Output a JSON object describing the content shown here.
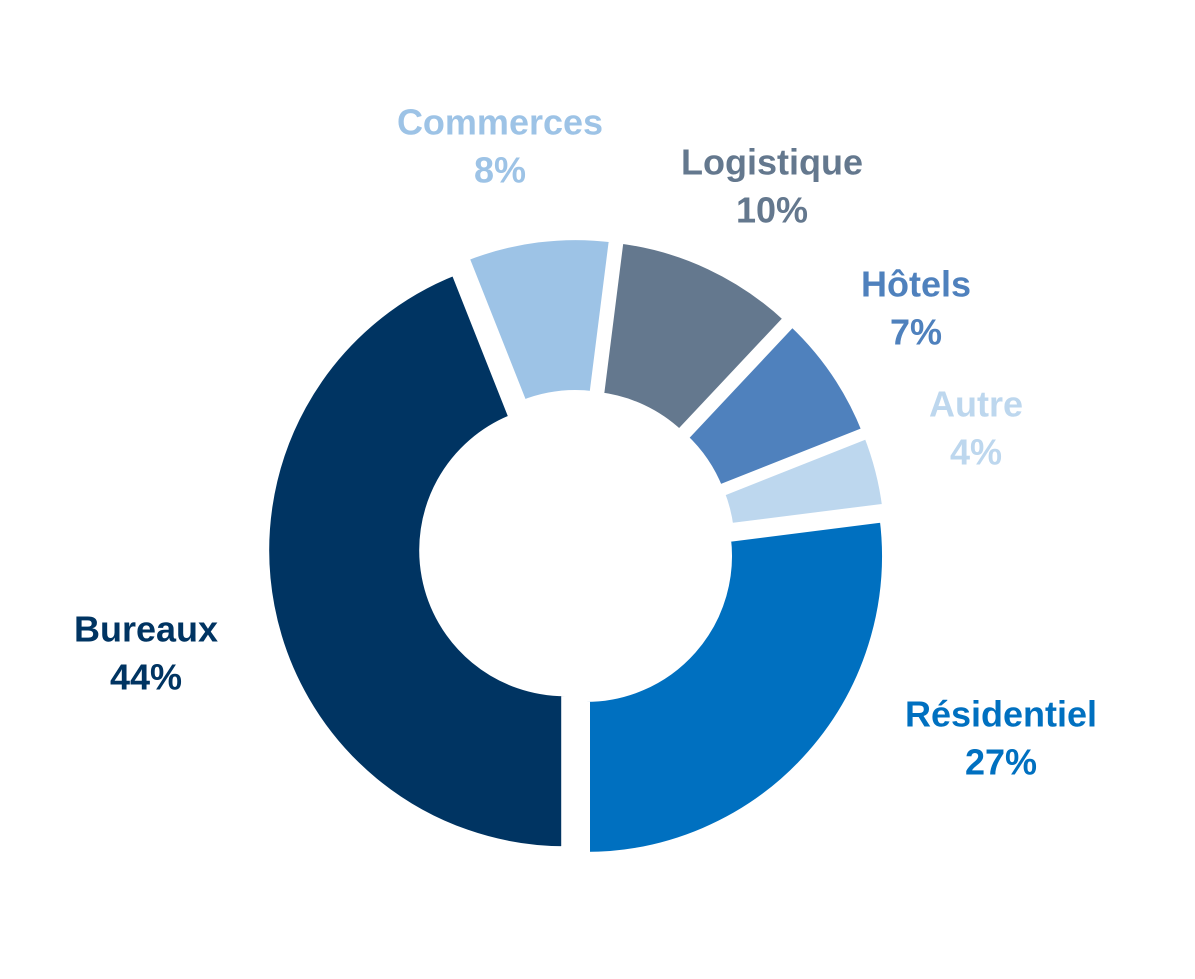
{
  "chart_data": {
    "type": "donut",
    "categories": [
      "Bureaux",
      "Commerces",
      "Logistique",
      "Hôtels",
      "Autre",
      "Résidentiel"
    ],
    "values": [
      44,
      8,
      10,
      7,
      4,
      27
    ],
    "value_labels": [
      "44%",
      "8%",
      "10%",
      "7%",
      "4%",
      "27%"
    ],
    "colors": [
      "#003462",
      "#9dc3e6",
      "#64788e",
      "#4f81bd",
      "#bdd7ee",
      "#0070c0"
    ]
  }
}
